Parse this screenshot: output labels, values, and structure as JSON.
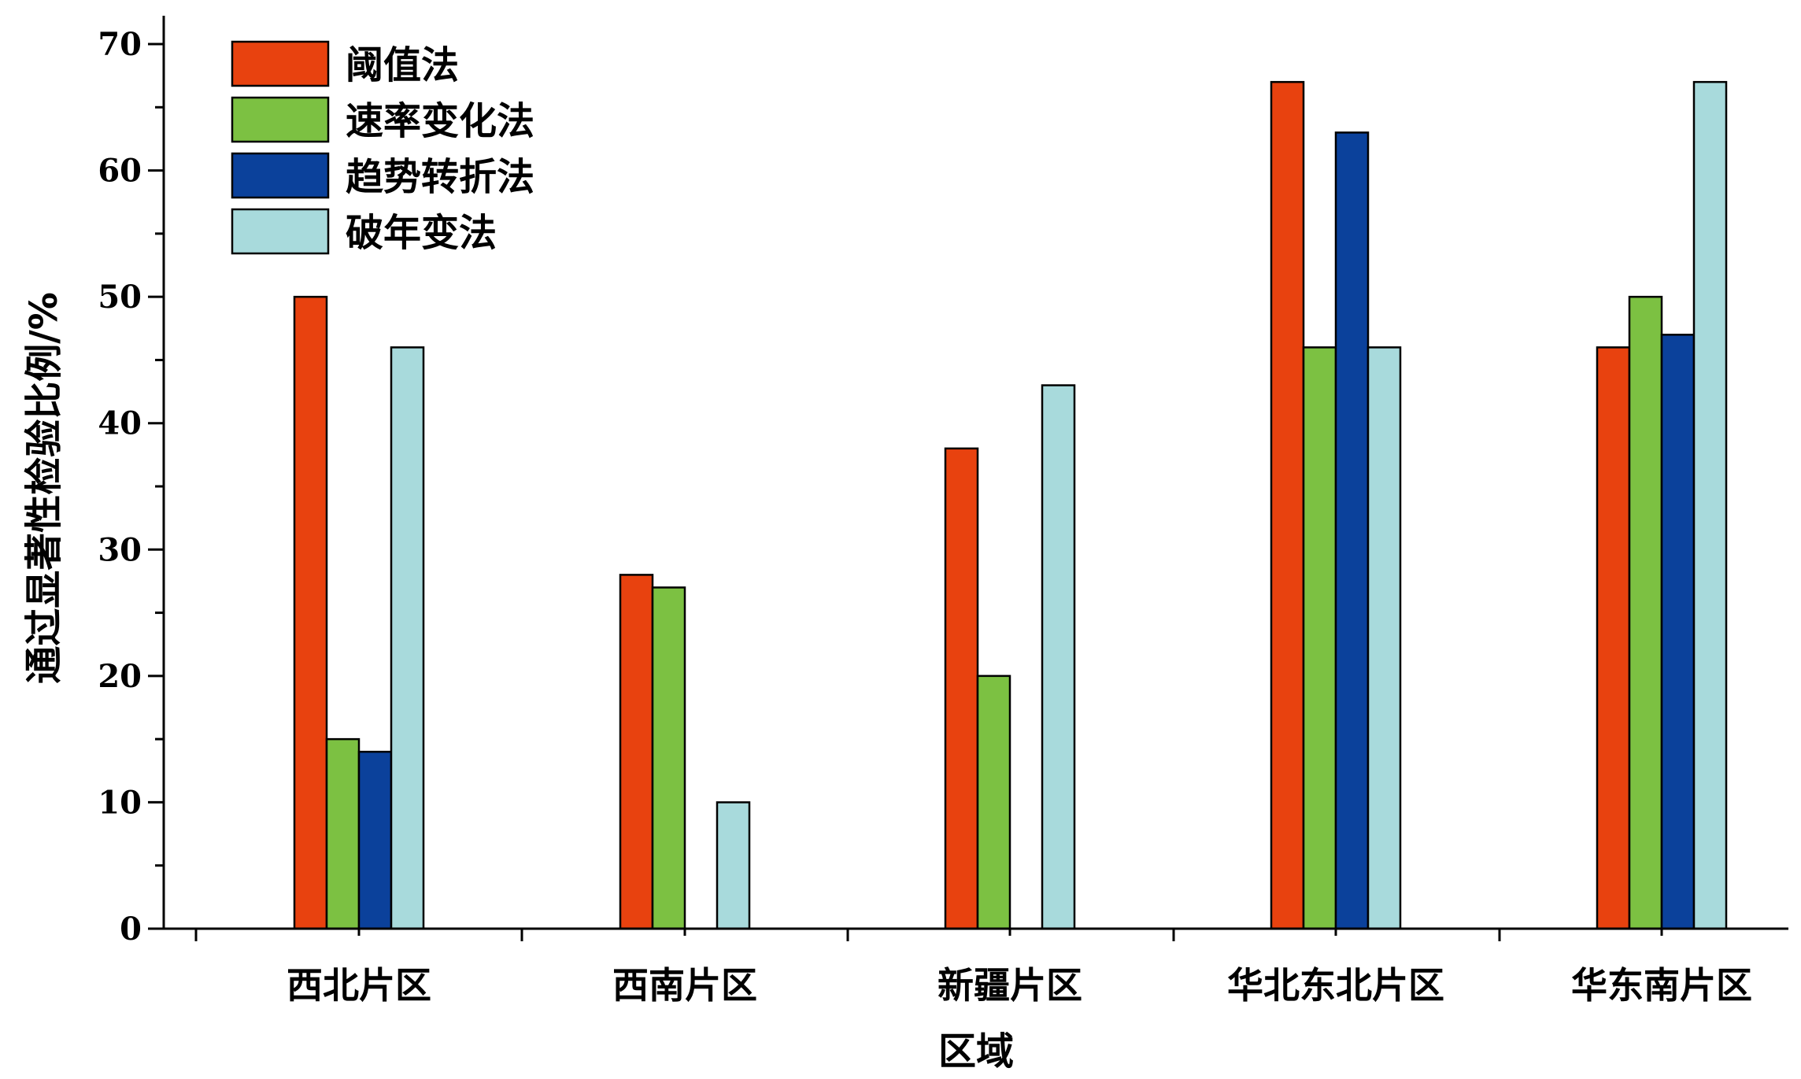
{
  "chart_data": {
    "type": "bar",
    "categories": [
      "西北片区",
      "西南片区",
      "新疆片区",
      "华北东北片区",
      "华东南片区"
    ],
    "series": [
      {
        "name": "阈值法",
        "color": "#e8420f",
        "values": [
          50,
          28,
          38,
          67,
          46
        ]
      },
      {
        "name": "速率变化法",
        "color": "#7cc142",
        "values": [
          15,
          27,
          20,
          46,
          50
        ]
      },
      {
        "name": "趋势转折法",
        "color": "#0b419b",
        "values": [
          14,
          0,
          0,
          63,
          47
        ]
      },
      {
        "name": "破年变法",
        "color": "#a8dadc",
        "values": [
          46,
          10,
          43,
          46,
          67
        ]
      }
    ],
    "xlabel": "区域",
    "ylabel": "通过显著性检验比例/%",
    "ylim": [
      0,
      70
    ],
    "yticks": [
      0,
      10,
      20,
      30,
      40,
      50,
      60,
      70
    ],
    "legend_position": "top-left",
    "grid": false
  }
}
